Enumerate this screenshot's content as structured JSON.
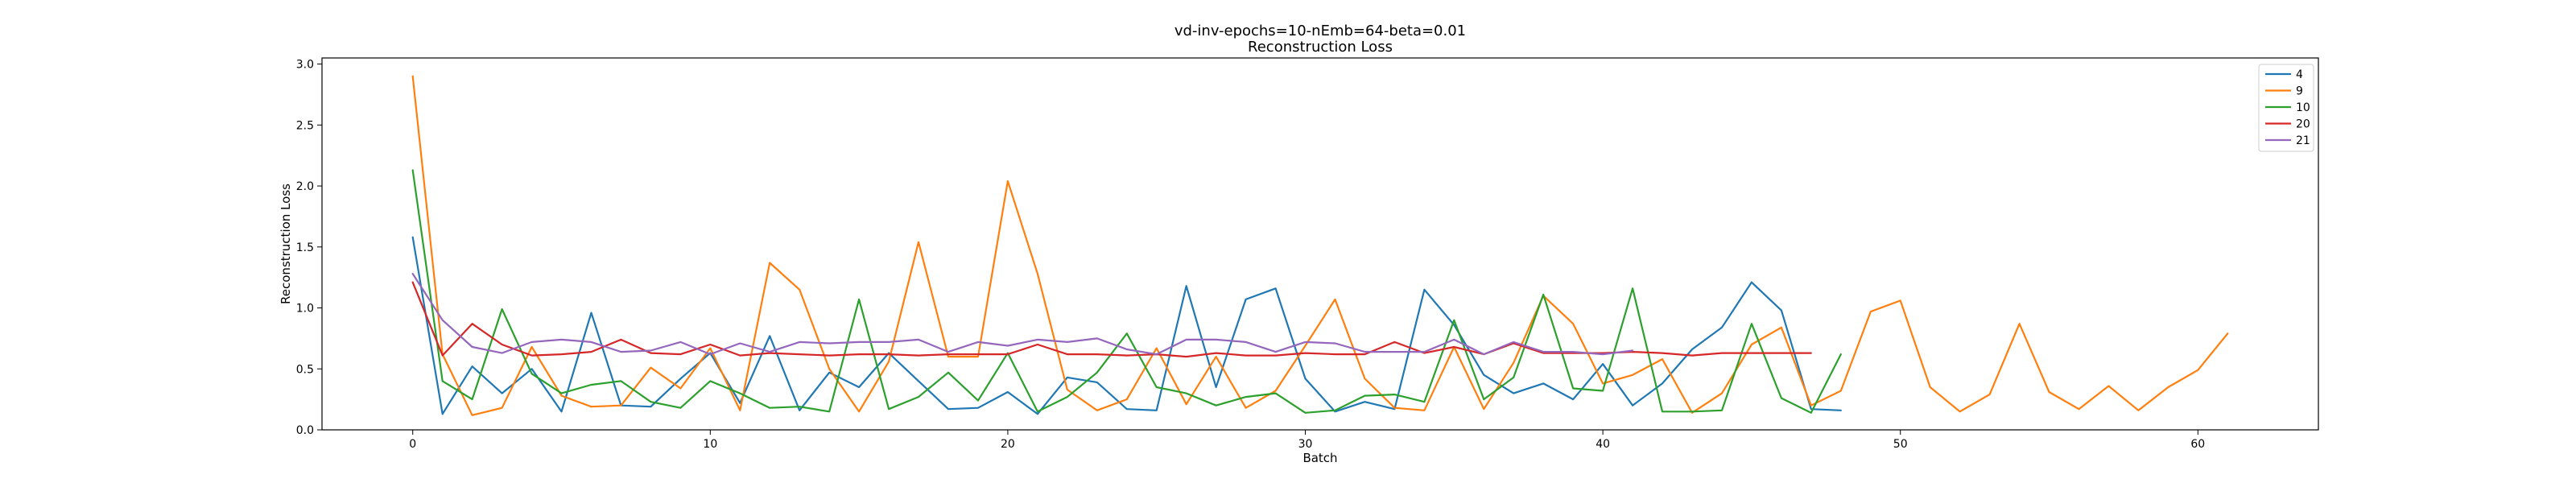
{
  "chart_data": {
    "type": "line",
    "title": "vd-inv-epochs=10-nEmb=64-beta=0.01",
    "subtitle": "Reconstruction Loss",
    "xlabel": "Batch",
    "ylabel": "Reconstruction Loss",
    "xlim": [
      -3.05,
      64.05
    ],
    "ylim": [
      0.0,
      3.05
    ],
    "xticks": [
      0,
      10,
      20,
      30,
      40,
      50,
      60
    ],
    "yticks": [
      0.0,
      0.5,
      1.0,
      1.5,
      2.0,
      2.5,
      3.0
    ],
    "xtick_labels": [
      "0",
      "10",
      "20",
      "30",
      "40",
      "50",
      "60"
    ],
    "ytick_labels": [
      "0.0",
      "0.5",
      "1.0",
      "1.5",
      "2.0",
      "2.5",
      "3.0"
    ],
    "grid": false,
    "legend_position": "top-right",
    "series": [
      {
        "name": "4",
        "color": "#1f77b4",
        "x": [
          0,
          1,
          2,
          3,
          4,
          5,
          6,
          7,
          8,
          9,
          10,
          11,
          12,
          13,
          14,
          15,
          16,
          17,
          18,
          19,
          20,
          21,
          22,
          23,
          24,
          25,
          26,
          27,
          28,
          29,
          30,
          31,
          32,
          33,
          34,
          35,
          36,
          37,
          38,
          39,
          40,
          41,
          42,
          43,
          44,
          45,
          46,
          47,
          48
        ],
        "values": [
          1.58,
          0.13,
          0.52,
          0.3,
          0.5,
          0.15,
          0.96,
          0.2,
          0.19,
          0.42,
          0.63,
          0.22,
          0.77,
          0.16,
          0.47,
          0.35,
          0.63,
          0.4,
          0.17,
          0.18,
          0.31,
          0.13,
          0.43,
          0.39,
          0.17,
          0.16,
          1.18,
          0.35,
          1.07,
          1.16,
          0.42,
          0.15,
          0.23,
          0.17,
          1.15,
          0.86,
          0.45,
          0.3,
          0.38,
          0.25,
          0.54,
          0.2,
          0.38,
          0.66,
          0.84,
          1.21,
          0.98,
          0.17,
          0.16
        ]
      },
      {
        "name": "9",
        "color": "#ff7f0e",
        "x": [
          0,
          1,
          2,
          3,
          4,
          5,
          6,
          7,
          8,
          9,
          10,
          11,
          12,
          13,
          14,
          15,
          16,
          17,
          18,
          19,
          20,
          21,
          22,
          23,
          24,
          25,
          26,
          27,
          28,
          29,
          30,
          31,
          32,
          33,
          34,
          35,
          36,
          37,
          38,
          39,
          40,
          41,
          42,
          43,
          44,
          45,
          46,
          47,
          48,
          49,
          50,
          51,
          52,
          53,
          54,
          55,
          56,
          57,
          58,
          59,
          60,
          61
        ],
        "values": [
          2.9,
          0.62,
          0.12,
          0.18,
          0.68,
          0.28,
          0.19,
          0.2,
          0.51,
          0.34,
          0.67,
          0.16,
          1.37,
          1.15,
          0.5,
          0.15,
          0.56,
          1.54,
          0.6,
          0.6,
          2.04,
          1.28,
          0.33,
          0.16,
          0.25,
          0.67,
          0.21,
          0.6,
          0.18,
          0.32,
          0.69,
          1.07,
          0.42,
          0.18,
          0.16,
          0.68,
          0.17,
          0.55,
          1.1,
          0.87,
          0.38,
          0.45,
          0.58,
          0.14,
          0.3,
          0.7,
          0.84,
          0.2,
          0.32,
          0.97,
          1.06,
          0.35,
          0.15,
          0.29,
          0.87,
          0.31,
          0.17,
          0.36,
          0.16,
          0.35,
          0.49,
          0.79
        ]
      },
      {
        "name": "10",
        "color": "#2ca02c",
        "x": [
          0,
          1,
          2,
          3,
          4,
          5,
          6,
          7,
          8,
          9,
          10,
          11,
          12,
          13,
          14,
          15,
          16,
          17,
          18,
          19,
          20,
          21,
          22,
          23,
          24,
          25,
          26,
          27,
          28,
          29,
          30,
          31,
          32,
          33,
          34,
          35,
          36,
          37,
          38,
          39,
          40,
          41,
          42,
          43,
          44,
          45,
          46,
          47,
          48
        ],
        "values": [
          2.13,
          0.4,
          0.25,
          0.99,
          0.46,
          0.3,
          0.37,
          0.4,
          0.23,
          0.18,
          0.4,
          0.3,
          0.18,
          0.19,
          0.15,
          1.07,
          0.17,
          0.27,
          0.47,
          0.24,
          0.63,
          0.15,
          0.27,
          0.47,
          0.79,
          0.35,
          0.3,
          0.2,
          0.27,
          0.3,
          0.14,
          0.16,
          0.28,
          0.29,
          0.23,
          0.9,
          0.25,
          0.43,
          1.11,
          0.34,
          0.32,
          1.16,
          0.15,
          0.15,
          0.16,
          0.87,
          0.26,
          0.14,
          0.62
        ]
      },
      {
        "name": "20",
        "color": "#d62728",
        "x": [
          0,
          1,
          2,
          3,
          4,
          5,
          6,
          7,
          8,
          9,
          10,
          11,
          12,
          13,
          14,
          15,
          16,
          17,
          18,
          19,
          20,
          21,
          22,
          23,
          24,
          25,
          26,
          27,
          28,
          29,
          30,
          31,
          32,
          33,
          34,
          35,
          36,
          37,
          38,
          39,
          40,
          41,
          42,
          43,
          44,
          45,
          46,
          47
        ],
        "values": [
          1.21,
          0.61,
          0.87,
          0.7,
          0.61,
          0.62,
          0.64,
          0.74,
          0.63,
          0.62,
          0.7,
          0.61,
          0.63,
          0.62,
          0.61,
          0.62,
          0.62,
          0.61,
          0.62,
          0.62,
          0.62,
          0.7,
          0.62,
          0.62,
          0.61,
          0.62,
          0.6,
          0.63,
          0.61,
          0.61,
          0.63,
          0.62,
          0.62,
          0.72,
          0.63,
          0.68,
          0.62,
          0.71,
          0.63,
          0.63,
          0.63,
          0.64,
          0.63,
          0.61,
          0.63,
          0.63,
          0.63,
          0.63
        ]
      },
      {
        "name": "21",
        "color": "#9467bd",
        "x": [
          0,
          1,
          2,
          3,
          4,
          5,
          6,
          7,
          8,
          9,
          10,
          11,
          12,
          13,
          14,
          15,
          16,
          17,
          18,
          19,
          20,
          21,
          22,
          23,
          24,
          25,
          26,
          27,
          28,
          29,
          30,
          31,
          32,
          33,
          34,
          35,
          36,
          37,
          38,
          39,
          40,
          41
        ],
        "values": [
          1.28,
          0.9,
          0.68,
          0.63,
          0.72,
          0.74,
          0.72,
          0.64,
          0.65,
          0.72,
          0.62,
          0.71,
          0.64,
          0.72,
          0.71,
          0.72,
          0.72,
          0.74,
          0.64,
          0.72,
          0.69,
          0.74,
          0.72,
          0.75,
          0.66,
          0.62,
          0.74,
          0.74,
          0.72,
          0.64,
          0.72,
          0.71,
          0.64,
          0.64,
          0.64,
          0.74,
          0.62,
          0.72,
          0.64,
          0.64,
          0.62,
          0.65
        ]
      }
    ]
  }
}
